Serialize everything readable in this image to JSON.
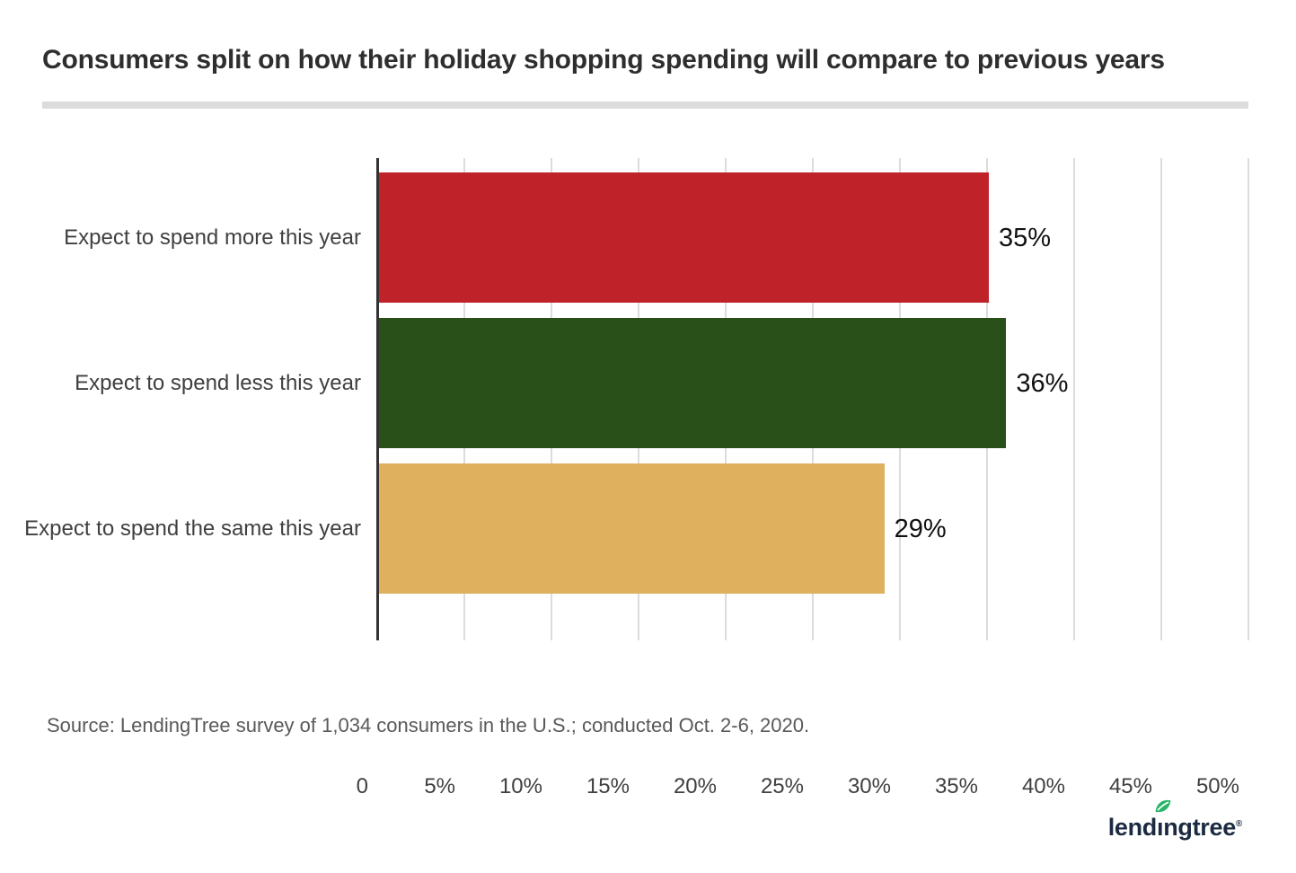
{
  "title": "Consumers split on how their holiday shopping spending will compare to previous years",
  "source": "Source: LendingTree survey of 1,034 consumers in the U.S.; conducted Oct. 2-6, 2020.",
  "logo": {
    "part1": "lend",
    "dotless_i": "ı",
    "part2": "ngtree",
    "registered": "®",
    "text_color": "#1b2a41",
    "leaf_color": "#28b567"
  },
  "chart_data": {
    "type": "bar",
    "orientation": "horizontal",
    "title": "Consumers split on how their holiday shopping spending will compare to previous years",
    "categories": [
      "Expect to spend more this year",
      "Expect to spend less this year",
      "Expect to spend the same this year"
    ],
    "values": [
      35,
      36,
      29
    ],
    "value_labels": [
      "35%",
      "36%",
      "29%"
    ],
    "bar_colors": [
      "#bf2329",
      "#2a501a",
      "#dfb15f"
    ],
    "xlim": [
      0,
      50
    ],
    "x_ticks": [
      0,
      5,
      10,
      15,
      20,
      25,
      30,
      35,
      40,
      45,
      50
    ],
    "x_tick_labels": [
      "0",
      "5%",
      "10%",
      "15%",
      "20%",
      "25%",
      "30%",
      "35%",
      "40%",
      "45%",
      "50%"
    ],
    "grid": "vertical",
    "gridline_color": "#dcdcdc",
    "axis_color": "#333333",
    "legend": "none"
  }
}
